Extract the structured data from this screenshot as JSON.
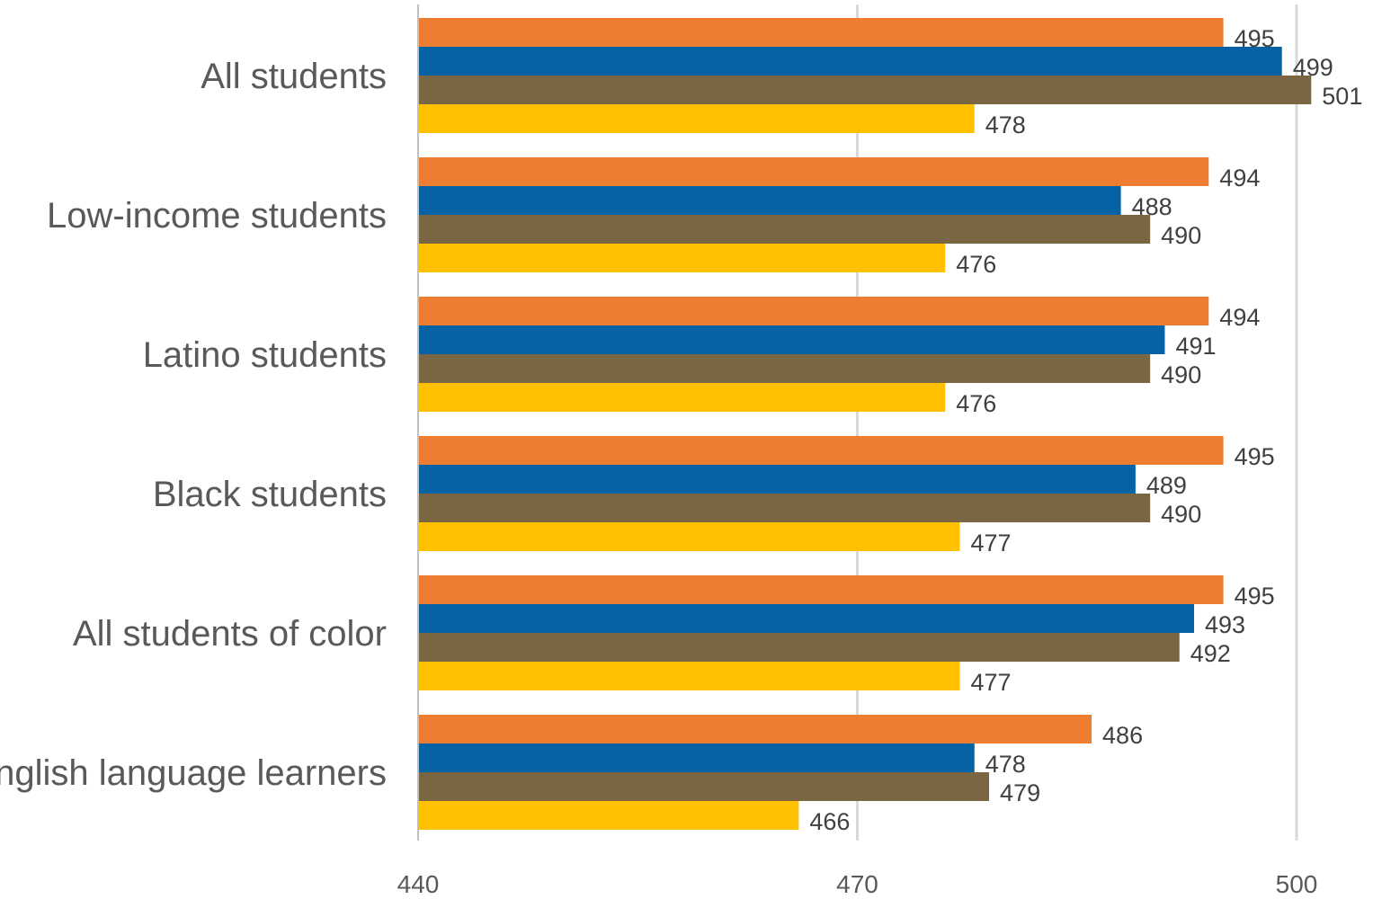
{
  "chart_data": {
    "type": "bar",
    "orientation": "horizontal",
    "categories": [
      "All students",
      "Low-income students",
      "Latino students",
      "Black students",
      "All students of color",
      "English language learners"
    ],
    "series": [
      {
        "color": "#ED7D31",
        "values": [
          495,
          494,
          494,
          495,
          495,
          486
        ]
      },
      {
        "color": "#0563A5",
        "values": [
          499,
          488,
          491,
          489,
          493,
          478
        ]
      },
      {
        "color": "#7A6642",
        "values": [
          501,
          490,
          490,
          490,
          492,
          479
        ]
      },
      {
        "color": "#FFC000",
        "values": [
          478,
          476,
          476,
          477,
          477,
          466
        ]
      }
    ],
    "x_ticks": [
      440,
      470,
      500
    ],
    "xlim": [
      440,
      500
    ],
    "title": "",
    "xlabel": "",
    "ylabel": "",
    "grid": true,
    "legend": "none"
  }
}
